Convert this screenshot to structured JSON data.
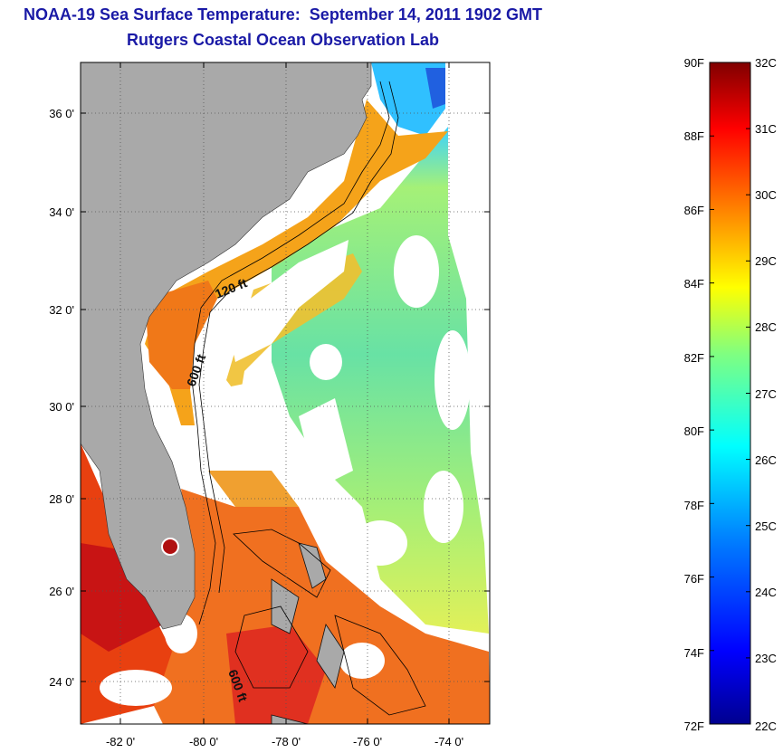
{
  "header": {
    "title": "NOAA-19 Sea Surface Temperature:  September 14, 2011 1902 GMT",
    "subtitle": "Rutgers Coastal Ocean Observation Lab"
  },
  "map": {
    "lat_ticks": [
      "36 0'",
      "34 0'",
      "32 0'",
      "30 0'",
      "28 0'",
      "26 0'",
      "24 0'"
    ],
    "lon_ticks": [
      "-82 0'",
      "-80 0'",
      "-78 0'",
      "-76 0'",
      "-74 0'"
    ],
    "contour_labels": [
      "120 ft",
      "600 ft",
      "600 ft"
    ],
    "land_color": "#a9a9a9",
    "cloud_color": "#ffffff"
  },
  "colorbar": {
    "fahrenheit": [
      "90F",
      "88F",
      "86F",
      "84F",
      "82F",
      "80F",
      "78F",
      "76F",
      "74F",
      "72F"
    ],
    "celsius": [
      "32C",
      "31C",
      "30C",
      "29C",
      "28C",
      "27C",
      "26C",
      "25C",
      "24C",
      "23C",
      "22C"
    ],
    "colormap": [
      "#00008f",
      "#0000ff",
      "#0080ff",
      "#00ffff",
      "#80ff80",
      "#ffff00",
      "#ff8000",
      "#ff0000",
      "#800000"
    ]
  }
}
